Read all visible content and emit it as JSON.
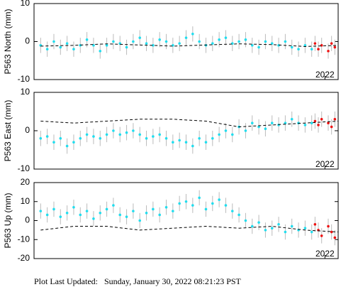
{
  "chart_data": [
    {
      "type": "scatter",
      "ylabel": "P563 North (mm)",
      "ylim": [
        -10,
        10
      ],
      "yticks": [
        -10,
        0,
        10
      ],
      "xlim": [
        2017.6,
        2022.2
      ],
      "xticks": [
        2022
      ],
      "series": [
        {
          "color": "#22ddee",
          "error": 2,
          "x": [
            2017.7,
            2017.8,
            2017.9,
            2018.0,
            2018.1,
            2018.2,
            2018.3,
            2018.4,
            2018.5,
            2018.6,
            2018.7,
            2018.8,
            2018.9,
            2019.0,
            2019.1,
            2019.2,
            2019.3,
            2019.4,
            2019.5,
            2019.6,
            2019.7,
            2019.8,
            2019.9,
            2020.0,
            2020.1,
            2020.2,
            2020.3,
            2020.4,
            2020.5,
            2020.6,
            2020.7,
            2020.8,
            2020.9,
            2021.0,
            2021.1,
            2021.2,
            2021.3,
            2021.4,
            2021.5,
            2021.6,
            2021.7,
            2021.8
          ],
          "values": [
            -1,
            -2,
            0,
            -1.5,
            -0.5,
            -2,
            -1,
            0.5,
            -1,
            -2.5,
            -1,
            0,
            -0.5,
            -1.5,
            0,
            1,
            -0.5,
            -1,
            0.5,
            0,
            -1,
            -0.5,
            1,
            2,
            0,
            -1,
            -0.5,
            0.5,
            1,
            -0.5,
            0,
            0.5,
            -1,
            -1.5,
            0,
            -0.5,
            -1,
            0,
            -1.5,
            -2,
            -1,
            -2
          ]
        },
        {
          "color": "#ee1111",
          "error": 2,
          "x": [
            2021.85,
            2021.9,
            2021.95,
            2022.05,
            2022.1,
            2022.15
          ],
          "values": [
            -0.5,
            -2,
            -1,
            -2.5,
            -0.5,
            -1.5
          ]
        },
        {
          "color": "#000000",
          "dashed": true,
          "x": [
            2017.7,
            2018.2,
            2018.7,
            2019.2,
            2019.7,
            2020.2,
            2020.7,
            2021.2,
            2021.7,
            2022.2
          ],
          "values": [
            -1.2,
            -1,
            -0.6,
            -0.9,
            -1.2,
            -0.9,
            -0.6,
            -0.8,
            -1.3,
            -1.0
          ]
        }
      ]
    },
    {
      "type": "scatter",
      "ylabel": "P563 East (mm)",
      "ylim": [
        -10,
        10
      ],
      "yticks": [
        -10,
        0,
        10
      ],
      "xlim": [
        2017.6,
        2022.2
      ],
      "xticks": [
        2022
      ],
      "series": [
        {
          "color": "#22ddee",
          "error": 2,
          "x": [
            2017.7,
            2017.8,
            2017.9,
            2018.0,
            2018.1,
            2018.2,
            2018.3,
            2018.4,
            2018.5,
            2018.6,
            2018.7,
            2018.8,
            2018.9,
            2019.0,
            2019.1,
            2019.2,
            2019.3,
            2019.4,
            2019.5,
            2019.6,
            2019.7,
            2019.8,
            2019.9,
            2020.0,
            2020.1,
            2020.2,
            2020.3,
            2020.4,
            2020.5,
            2020.6,
            2020.7,
            2020.8,
            2020.9,
            2021.0,
            2021.1,
            2021.2,
            2021.3,
            2021.4,
            2021.5,
            2021.6,
            2021.7,
            2021.8
          ],
          "values": [
            -2,
            -1.5,
            -3,
            -2,
            -4,
            -3,
            -2,
            -1,
            -1.5,
            -2,
            -1,
            0,
            -1,
            -0.5,
            0,
            -1,
            -2,
            -1.5,
            -1,
            -2,
            -3,
            -2.5,
            -3,
            -4,
            -2,
            -3,
            -2,
            -1,
            0,
            -1,
            1,
            0,
            2,
            1,
            0.5,
            2,
            1.5,
            2,
            3,
            2,
            1.5,
            2
          ]
        },
        {
          "color": "#ee1111",
          "error": 2,
          "x": [
            2021.85,
            2021.9,
            2021.95,
            2022.05,
            2022.1,
            2022.15
          ],
          "values": [
            2.5,
            1.5,
            3,
            2,
            1,
            3
          ]
        },
        {
          "color": "#000000",
          "dashed": true,
          "x": [
            2017.7,
            2018.2,
            2018.7,
            2019.2,
            2019.7,
            2020.2,
            2020.7,
            2021.2,
            2021.7,
            2022.2
          ],
          "values": [
            2.5,
            2,
            2.5,
            3,
            3,
            2.5,
            1,
            1.5,
            2,
            2.5
          ]
        }
      ]
    },
    {
      "type": "scatter",
      "ylabel": "P563 Up (mm)",
      "ylim": [
        -20,
        20
      ],
      "yticks": [
        -20,
        -10,
        0,
        10,
        20
      ],
      "xlim": [
        2017.6,
        2022.2
      ],
      "xticks": [
        2022
      ],
      "series": [
        {
          "color": "#22ddee",
          "error": 4,
          "x": [
            2017.7,
            2017.8,
            2017.9,
            2018.0,
            2018.1,
            2018.2,
            2018.3,
            2018.4,
            2018.5,
            2018.6,
            2018.7,
            2018.8,
            2018.9,
            2019.0,
            2019.1,
            2019.2,
            2019.3,
            2019.4,
            2019.5,
            2019.6,
            2019.7,
            2019.8,
            2019.9,
            2020.0,
            2020.1,
            2020.2,
            2020.3,
            2020.4,
            2020.5,
            2020.6,
            2020.7,
            2020.8,
            2020.9,
            2021.0,
            2021.1,
            2021.2,
            2021.3,
            2021.4,
            2021.5,
            2021.6,
            2021.7,
            2021.8
          ],
          "values": [
            5,
            3,
            6,
            2,
            4,
            7,
            3,
            5,
            1,
            4,
            6,
            8,
            3,
            2,
            5,
            0,
            4,
            6,
            3,
            7,
            5,
            9,
            10,
            8,
            12,
            6,
            9,
            11,
            8,
            5,
            3,
            0,
            -3,
            -1,
            -5,
            -4,
            -2,
            -6,
            -3,
            -5,
            -4,
            -6
          ]
        },
        {
          "color": "#ee1111",
          "error": 4,
          "x": [
            2021.85,
            2021.9,
            2021.95,
            2022.05,
            2022.1,
            2022.15
          ],
          "values": [
            -2,
            -5,
            -8,
            -3,
            -6,
            -9
          ]
        },
        {
          "color": "#000000",
          "dashed": true,
          "x": [
            2017.7,
            2018.2,
            2018.7,
            2019.2,
            2019.7,
            2020.2,
            2020.7,
            2021.2,
            2021.7,
            2022.2
          ],
          "values": [
            -5,
            -3,
            -3,
            -5,
            -4,
            -3,
            -4,
            -3,
            -5,
            -6
          ]
        }
      ]
    }
  ],
  "footer": "Plot Last Updated:   Sunday, January 30, 2022 08:21:23 PST"
}
